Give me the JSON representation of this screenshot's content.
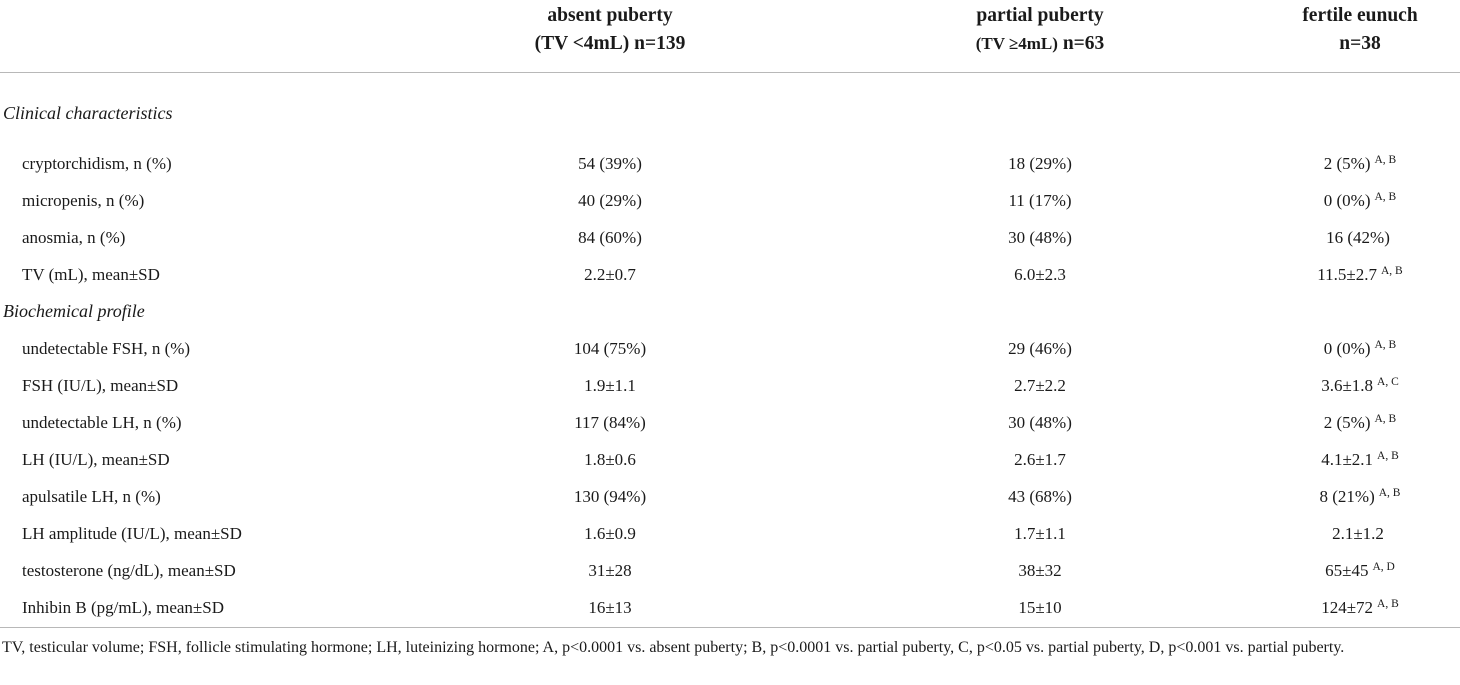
{
  "header": {
    "col1_line1": "absent puberty",
    "col1_line2": "(TV <4mL) n=139",
    "col2_line1": "partial puberty",
    "col2_line2_small": "(TV ≥4mL)",
    "col2_line2_bold": "n=63",
    "col3_line1": "fertile eunuch",
    "col3_line2": "n=38"
  },
  "sections": {
    "clinical": "Clinical characteristics",
    "biochemical": "Biochemical profile"
  },
  "rows": [
    {
      "label": "cryptorchidism, n (%)",
      "absent": "54 (39%)",
      "partial": "18 (29%)",
      "fertile": "2 (5%)",
      "note": "A, B"
    },
    {
      "label": "micropenis, n (%)",
      "absent": "40 (29%)",
      "partial": "11 (17%)",
      "fertile": "0 (0%)",
      "note": "A, B"
    },
    {
      "label": "anosmia, n (%)",
      "absent": "84 (60%)",
      "partial": "30 (48%)",
      "fertile": "16 (42%)",
      "note": ""
    },
    {
      "label": "TV (mL), mean±SD",
      "absent": "2.2±0.7",
      "partial": "6.0±2.3",
      "fertile": "11.5±2.7",
      "note": "A, B"
    },
    {
      "label": "undetectable FSH, n (%)",
      "absent": "104 (75%)",
      "partial": "29 (46%)",
      "fertile": "0 (0%)",
      "note": "A, B"
    },
    {
      "label": "FSH (IU/L), mean±SD",
      "absent": "1.9±1.1",
      "partial": "2.7±2.2",
      "fertile": "3.6±1.8",
      "note": "A, C"
    },
    {
      "label": "undetectable LH, n (%)",
      "absent": "117 (84%)",
      "partial": "30 (48%)",
      "fertile": "2 (5%)",
      "note": "A, B"
    },
    {
      "label": "LH (IU/L), mean±SD",
      "absent": "1.8±0.6",
      "partial": "2.6±1.7",
      "fertile": "4.1±2.1",
      "note": "A, B"
    },
    {
      "label": "apulsatile LH, n (%)",
      "absent": "130 (94%)",
      "partial": "43 (68%)",
      "fertile": "8 (21%)",
      "note": "A, B"
    },
    {
      "label": "LH amplitude (IU/L), mean±SD",
      "absent": "1.6±0.9",
      "partial": "1.7±1.1",
      "fertile": "2.1±1.2",
      "note": ""
    },
    {
      "label": "testosterone (ng/dL), mean±SD",
      "absent": "31±28",
      "partial": "38±32",
      "fertile": "65±45",
      "note": "A, D"
    },
    {
      "label": "Inhibin B (pg/mL), mean±SD",
      "absent": "16±13",
      "partial": "15±10",
      "fertile": "124±72",
      "note": "A, B"
    }
  ],
  "footnote": "TV, testicular volume; FSH, follicle stimulating hormone; LH, luteinizing hormone; A, p<0.0001 vs. absent puberty; B, p<0.0001 vs. partial puberty, C, p<0.05 vs. partial puberty, D, p<0.001 vs. partial puberty."
}
